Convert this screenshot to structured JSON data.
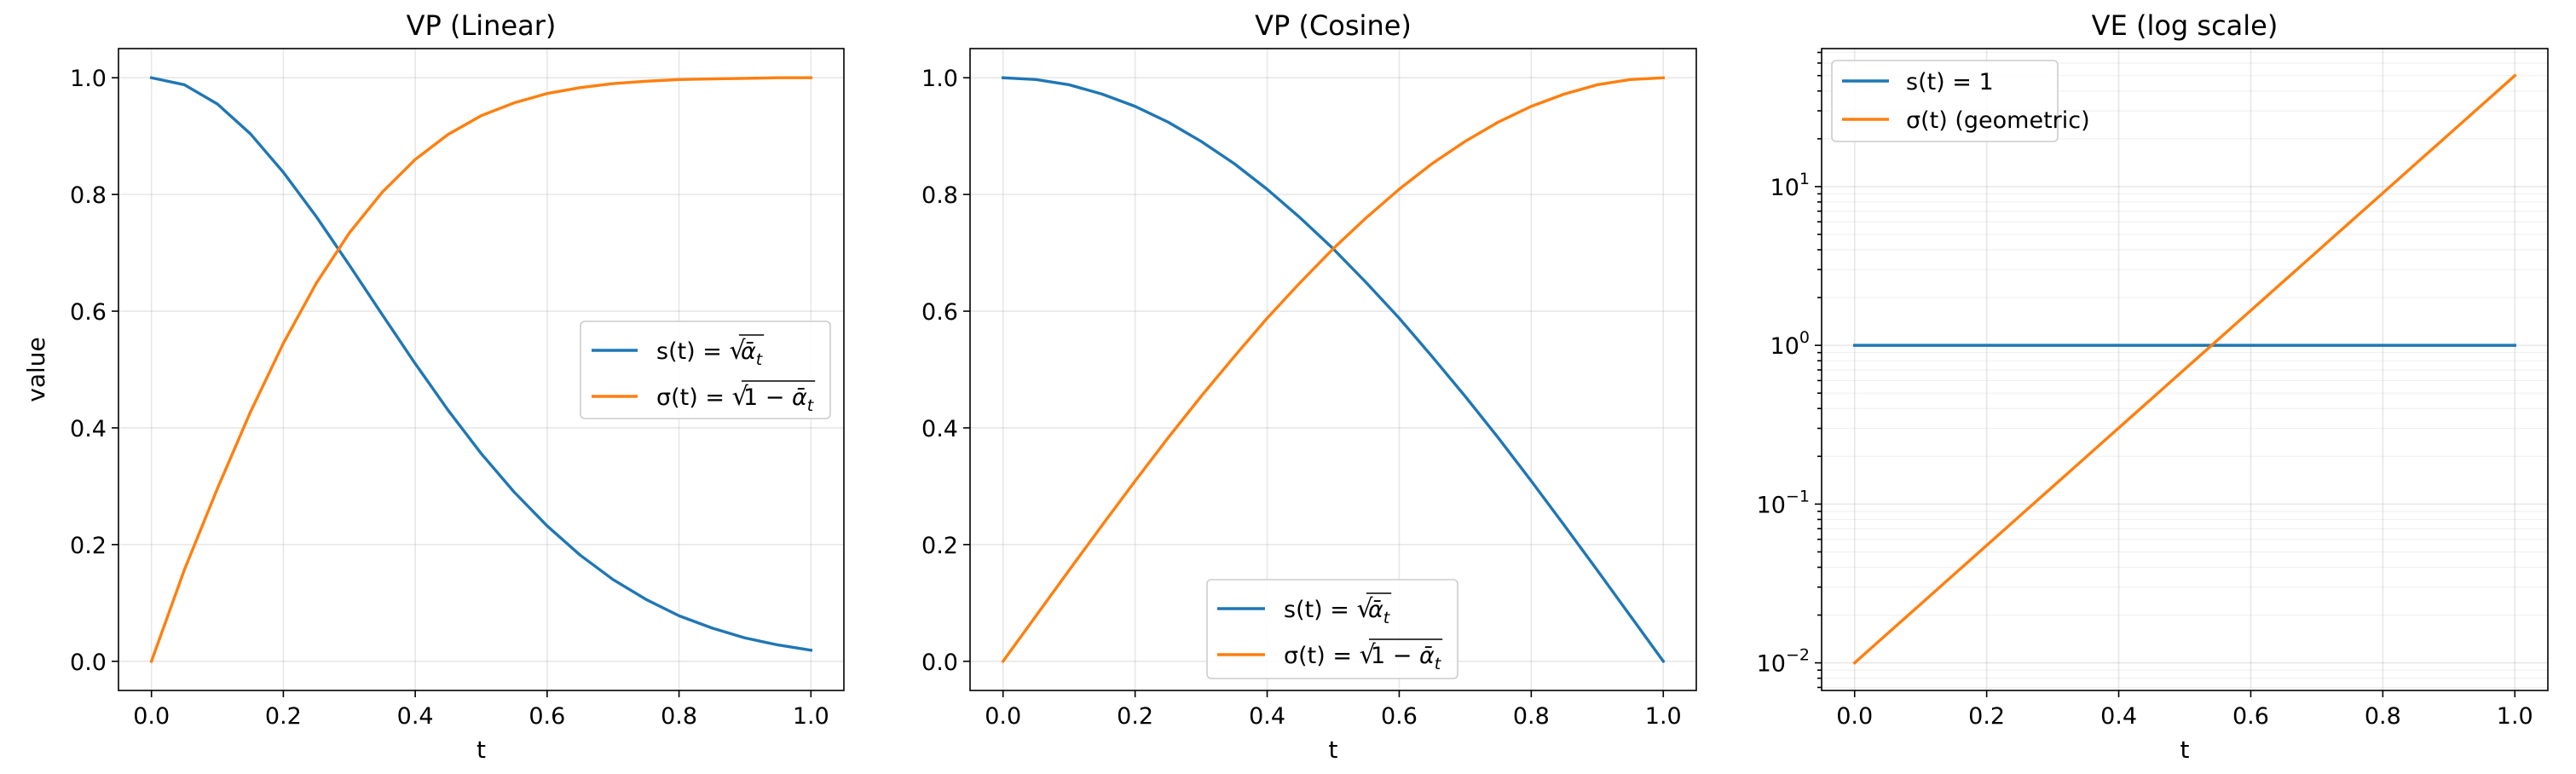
{
  "chart_data": [
    {
      "type": "line",
      "title": "VP (Linear)",
      "xlabel": "t",
      "ylabel": "value",
      "xlim": [
        -0.05,
        1.05
      ],
      "ylim": [
        -0.05,
        1.05
      ],
      "yscale": "linear",
      "xticks": [
        "0.0",
        "0.2",
        "0.4",
        "0.6",
        "0.8",
        "1.0"
      ],
      "yticks": [
        "0.0",
        "0.2",
        "0.4",
        "0.6",
        "0.8",
        "1.0"
      ],
      "grid": true,
      "legend": {
        "placement": "center-right"
      },
      "x": [
        0.0,
        0.05,
        0.1,
        0.15,
        0.2,
        0.25,
        0.3,
        0.35,
        0.4,
        0.45,
        0.5,
        0.55,
        0.6,
        0.65,
        0.7,
        0.75,
        0.8,
        0.85,
        0.9,
        0.95,
        1.0
      ],
      "series": [
        {
          "name": "s(t) = √ᾱ_t",
          "legend_main": "s(t) = ",
          "legend_rad": "ᾱ",
          "legend_sub": "t",
          "legend_one": "",
          "color": "#1f77b4",
          "values": [
            1.0,
            0.988,
            0.955,
            0.904,
            0.838,
            0.762,
            0.679,
            0.594,
            0.51,
            0.43,
            0.356,
            0.29,
            0.232,
            0.182,
            0.14,
            0.106,
            0.078,
            0.057,
            0.04,
            0.028,
            0.019
          ]
        },
        {
          "name": "σ(t) = √(1 − ᾱ_t)",
          "legend_main": "σ(t) = ",
          "legend_rad": "ᾱ",
          "legend_sub": "t",
          "legend_one": "1 − ",
          "color": "#ff7f0e",
          "values": [
            0.0,
            0.157,
            0.296,
            0.427,
            0.545,
            0.648,
            0.734,
            0.804,
            0.86,
            0.903,
            0.935,
            0.957,
            0.973,
            0.983,
            0.99,
            0.994,
            0.997,
            0.998,
            0.999,
            1.0,
            1.0
          ]
        }
      ]
    },
    {
      "type": "line",
      "title": "VP (Cosine)",
      "xlabel": "t",
      "ylabel": "",
      "xlim": [
        -0.05,
        1.05
      ],
      "ylim": [
        -0.05,
        1.05
      ],
      "yscale": "linear",
      "xticks": [
        "0.0",
        "0.2",
        "0.4",
        "0.6",
        "0.8",
        "1.0"
      ],
      "yticks": [
        "0.0",
        "0.2",
        "0.4",
        "0.6",
        "0.8",
        "1.0"
      ],
      "grid": true,
      "legend": {
        "placement": "bottom-center"
      },
      "x": [
        0.0,
        0.05,
        0.1,
        0.15,
        0.2,
        0.25,
        0.3,
        0.35,
        0.4,
        0.45,
        0.5,
        0.55,
        0.6,
        0.65,
        0.7,
        0.75,
        0.8,
        0.85,
        0.9,
        0.95,
        1.0
      ],
      "series": [
        {
          "name": "s(t) = √ᾱ_t",
          "legend_main": "s(t) = ",
          "legend_rad": "ᾱ",
          "legend_sub": "t",
          "legend_one": "",
          "color": "#1f77b4",
          "values": [
            1.0,
            0.997,
            0.988,
            0.972,
            0.951,
            0.924,
            0.891,
            0.853,
            0.809,
            0.76,
            0.707,
            0.649,
            0.588,
            0.522,
            0.454,
            0.383,
            0.309,
            0.233,
            0.156,
            0.078,
            0.0
          ]
        },
        {
          "name": "σ(t) = √(1 − ᾱ_t)",
          "legend_main": "σ(t) = ",
          "legend_rad": "ᾱ",
          "legend_sub": "t",
          "legend_one": "1 − ",
          "color": "#ff7f0e",
          "values": [
            0.0,
            0.078,
            0.156,
            0.233,
            0.309,
            0.383,
            0.454,
            0.522,
            0.588,
            0.649,
            0.707,
            0.76,
            0.809,
            0.853,
            0.891,
            0.924,
            0.951,
            0.972,
            0.988,
            0.997,
            1.0
          ]
        }
      ]
    },
    {
      "type": "line",
      "title": "VE (log scale)",
      "xlabel": "t",
      "ylabel": "",
      "xlim": [
        -0.05,
        1.05
      ],
      "ylim": [
        0.0067,
        74.0
      ],
      "yscale": "log",
      "xticks": [
        "0.0",
        "0.2",
        "0.4",
        "0.6",
        "0.8",
        "1.0"
      ],
      "yticks": [
        {
          "value": 0.01,
          "base": "10",
          "exp": "−2"
        },
        {
          "value": 0.1,
          "base": "10",
          "exp": "−1"
        },
        {
          "value": 1,
          "base": "10",
          "exp": "0"
        },
        {
          "value": 10,
          "base": "10",
          "exp": "1"
        }
      ],
      "grid": true,
      "legend": {
        "placement": "top-left"
      },
      "x": [
        0.0,
        1.0
      ],
      "series": [
        {
          "name": "s(t) = 1",
          "legend_main": "s(t) = 1",
          "legend_rad": "",
          "legend_sub": "",
          "legend_one": "",
          "color": "#1f77b4",
          "values": [
            1.0,
            1.0
          ]
        },
        {
          "name": "σ(t) (geometric)",
          "legend_main": "σ(t) (geometric)",
          "legend_rad": "",
          "legend_sub": "",
          "legend_one": "",
          "color": "#ff7f0e",
          "values": [
            0.01,
            50.0
          ]
        }
      ]
    }
  ]
}
